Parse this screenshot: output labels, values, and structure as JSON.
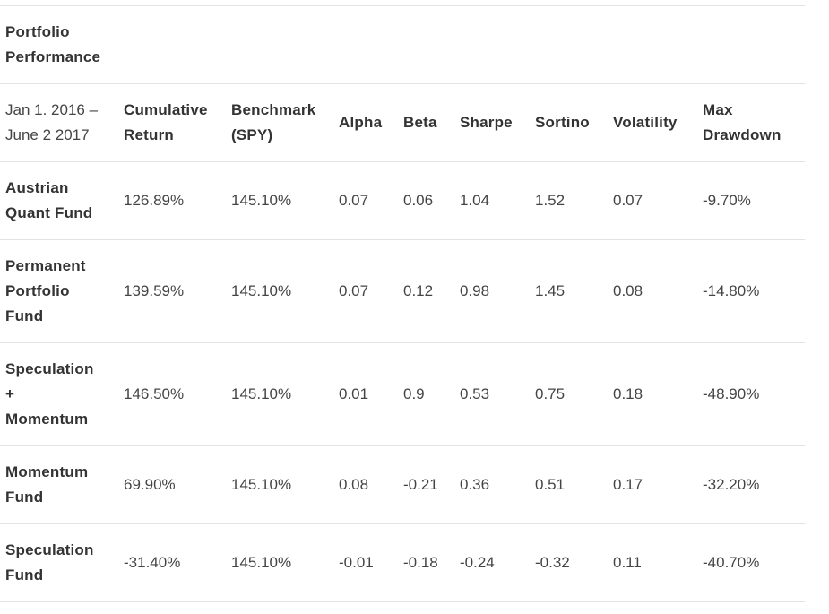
{
  "table": {
    "title": "Portfolio\nPerformance",
    "headers": [
      "Jan 1. 2016 –\nJune 2 2017",
      "Cumulative\nReturn",
      "Benchmark\n(SPY)",
      "Alpha",
      "Beta",
      "Sharpe",
      "Sortino",
      "Volatility",
      "Max\nDrawdown"
    ],
    "rows": [
      [
        "Austrian\nQuant Fund",
        "126.89%",
        "145.10%",
        "0.07",
        "0.06",
        "1.04",
        "1.52",
        "0.07",
        "-9.70%"
      ],
      [
        "Permanent\nPortfolio\nFund",
        "139.59%",
        "145.10%",
        "0.07",
        "0.12",
        "0.98",
        "1.45",
        "0.08",
        "-14.80%"
      ],
      [
        "Speculation\n+\nMomentum",
        "146.50%",
        "145.10%",
        "0.01",
        "0.9",
        "0.53",
        "0.75",
        "0.18",
        "-48.90%"
      ],
      [
        "Momentum\nFund",
        "69.90%",
        "145.10%",
        "0.08",
        "-0.21",
        "0.36",
        "0.51",
        "0.17",
        "-32.20%"
      ],
      [
        "Speculation\nFund",
        "-31.40%",
        "145.10%",
        "-0.01",
        "-0.18",
        "-0.24",
        "-0.32",
        "0.11",
        "-40.70%"
      ]
    ]
  }
}
